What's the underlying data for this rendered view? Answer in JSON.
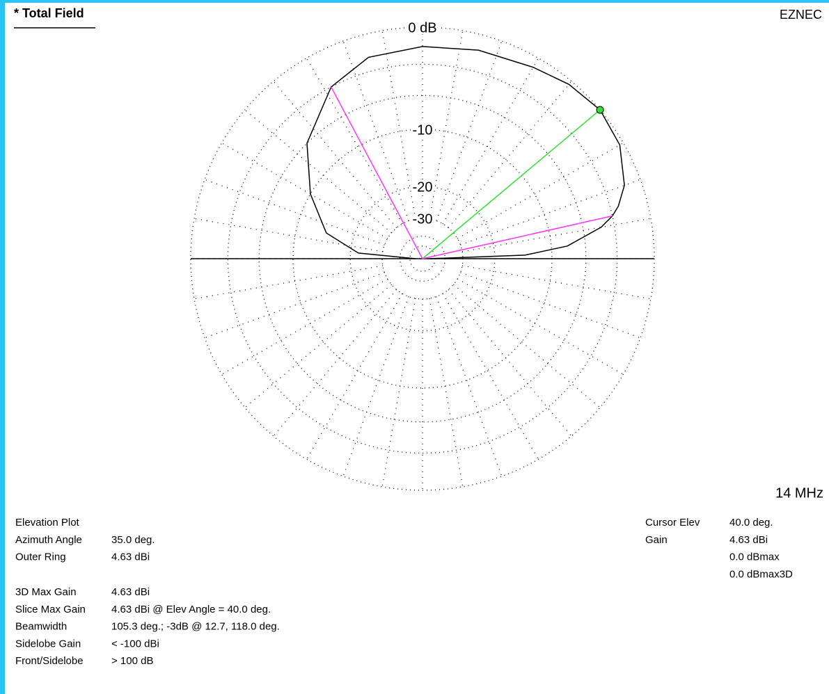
{
  "header": {
    "title": "* Total Field",
    "brand": "EZNEC",
    "frequency": "14 MHz"
  },
  "chart_data": {
    "type": "polar",
    "x": [
      0,
      2,
      5,
      10,
      12.7,
      15,
      20,
      30,
      40,
      50,
      60,
      75,
      90,
      105,
      118,
      135,
      150,
      165,
      175,
      180
    ],
    "values": [
      -60,
      -14,
      -8,
      -4.2,
      -3,
      -2.3,
      -1.3,
      -0.3,
      0,
      -0.3,
      -0.8,
      -1.2,
      -1.5,
      -1.8,
      -3,
      -6,
      -10,
      -14.5,
      -22,
      -60
    ],
    "color": "#000000",
    "rticks": [
      {
        "value": 0,
        "label": "0 dB"
      },
      {
        "value": -3,
        "label": null
      },
      {
        "value": -6,
        "label": null
      },
      -10,
      -20,
      -30,
      {
        "value": -40,
        "label": null
      },
      {
        "value": -50,
        "label": null
      }
    ],
    "angle_grid_step": 10,
    "markers": [
      {
        "angle": 40,
        "value": 0,
        "color": "#33dd33",
        "dot": true
      },
      {
        "angle": 12.7,
        "value": -3,
        "color": "#ff33ff"
      },
      {
        "angle": 118,
        "value": -3,
        "color": "#ff33ff"
      }
    ]
  },
  "info": {
    "left1": [
      {
        "label": "Elevation Plot"
      },
      {
        "label": "Azimuth Angle",
        "value": "35.0 deg."
      },
      {
        "label": "Outer Ring",
        "value": "4.63 dBi"
      }
    ],
    "left2": [
      {
        "label": "3D Max Gain",
        "value": "4.63 dBi"
      },
      {
        "label": "Slice Max Gain",
        "value": "4.63 dBi @ Elev Angle = 40.0 deg."
      },
      {
        "label": "Beamwidth",
        "value": "105.3 deg.; -3dB @ 12.7, 118.0 deg."
      },
      {
        "label": "Sidelobe Gain",
        "value": "< -100 dBi"
      },
      {
        "label": "Front/Sidelobe",
        "value": "> 100 dB"
      }
    ],
    "right": [
      {
        "label": "Cursor Elev",
        "value": "40.0 deg."
      },
      {
        "label": "Gain",
        "value": "4.63 dBi"
      },
      {
        "value": "0.0 dBmax"
      },
      {
        "value": "0.0 dBmax3D"
      }
    ]
  }
}
